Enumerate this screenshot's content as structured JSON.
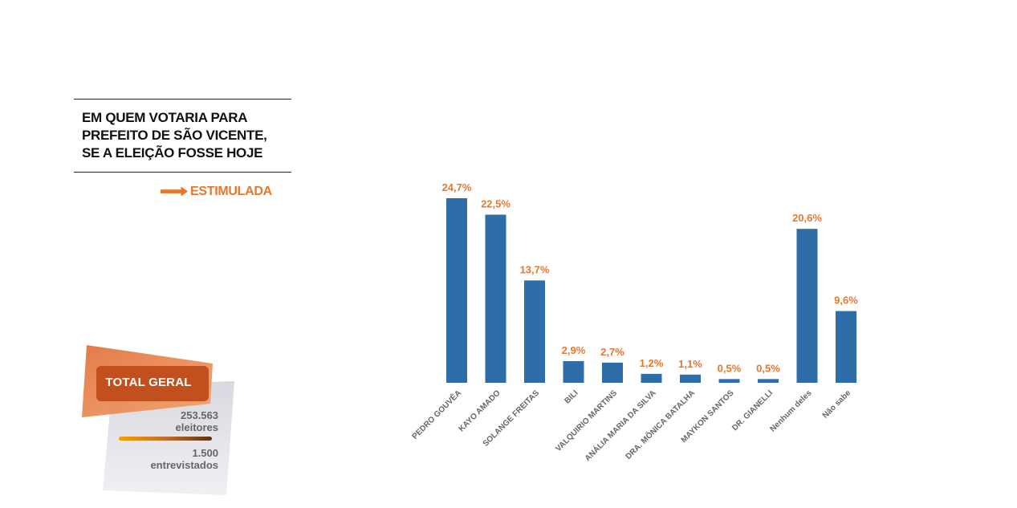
{
  "header": {
    "title_lines": [
      "EM QUEM VOTARIA PARA",
      "PREFEITO DE SÃO VICENTE,",
      "SE A ELEIÇÃO FOSSE HOJE"
    ],
    "badge_label": "ESTIMULADA"
  },
  "totals": {
    "label": "TOTAL GERAL",
    "voters_value": "253.563",
    "voters_label": "eleitores",
    "interviewed_value": "1.500",
    "interviewed_label": "entrevistados"
  },
  "colors": {
    "bar": "#2e6ea8",
    "value_label": "#e8772e",
    "category_label": "#666666",
    "accent": "#e8772e"
  },
  "chart_data": {
    "type": "bar",
    "categories": [
      "PEDRO GOUVÊA",
      "KAYO AMADO",
      "SOLANGE FREITAS",
      "BILI",
      "VALQUIRIO MARTINS",
      "ANÁLIA MARIA DA SILVA",
      "DRA. MÔNICA BATALHA",
      "MAYKON SANTOS",
      "DR. GIANELLI",
      "Nenhum deles",
      "Não sabe"
    ],
    "values": [
      24.7,
      22.5,
      13.7,
      2.9,
      2.7,
      1.2,
      1.1,
      0.5,
      0.5,
      20.6,
      9.6
    ],
    "value_labels": [
      "24,7%",
      "22,5%",
      "13,7%",
      "2,9%",
      "2,7%",
      "1,2%",
      "1,1%",
      "0,5%",
      "0,5%",
      "20,6%",
      "9,6%"
    ],
    "ylim": [
      0,
      24.7
    ],
    "grid": false,
    "legend": "none"
  }
}
